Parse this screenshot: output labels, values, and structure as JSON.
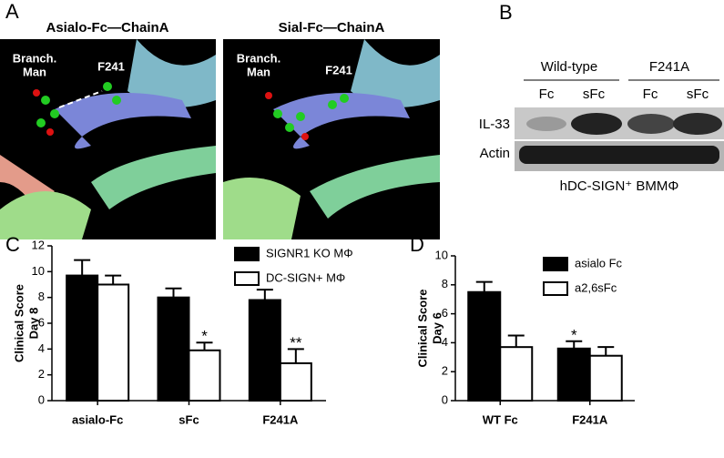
{
  "panels": {
    "A": {
      "letter": "A",
      "left_title": "Asialo-Fc—ChainA",
      "right_title": "Sial-Fc—ChainA",
      "left_labels": {
        "site": [
          "Branch.",
          "Man"
        ],
        "residue": "F241"
      },
      "right_labels": {
        "site": [
          "Branch.",
          "Man"
        ],
        "residue": "F241"
      }
    },
    "B": {
      "letter": "B",
      "groups": [
        "Wild-type",
        "F241A"
      ],
      "lanes": [
        "Fc",
        "sFc",
        "Fc",
        "sFc"
      ],
      "rows": [
        "IL-33",
        "Actin"
      ],
      "caption": "hDC-SIGN⁺ BMMΦ"
    }
  },
  "chart_data": [
    {
      "type": "bar",
      "letter": "C",
      "y_label": [
        "Clinical Score",
        "Day 8"
      ],
      "categories": [
        "asialo-Fc",
        "sFc",
        "F241A"
      ],
      "series": [
        {
          "name": "SIGNR1 KO MΦ",
          "color": "#000000",
          "values": [
            9.7,
            8.0,
            7.8
          ],
          "errors": [
            1.2,
            0.7,
            0.8
          ]
        },
        {
          "name": "DC-SIGN+ MΦ",
          "color": "#ffffff",
          "values": [
            9.0,
            3.9,
            2.9
          ],
          "errors": [
            0.7,
            0.6,
            1.1
          ],
          "value_labels": [
            null,
            "*",
            "**"
          ]
        }
      ],
      "ylim": [
        0,
        12
      ],
      "yticks": [
        0,
        2,
        4,
        6,
        8,
        10,
        12
      ],
      "legend": "upper right",
      "grid": false
    },
    {
      "type": "bar",
      "letter": "D",
      "y_label": [
        "Clinical Score",
        "Day 6"
      ],
      "categories": [
        "WT Fc",
        "F241A"
      ],
      "series": [
        {
          "name": "asialo Fc",
          "color": "#000000",
          "values": [
            7.5,
            3.6
          ],
          "errors": [
            0.7,
            0.5
          ],
          "value_labels": [
            null,
            "*"
          ]
        },
        {
          "name": "a2,6sFc",
          "color": "#ffffff",
          "values": [
            3.7,
            3.1
          ],
          "errors": [
            0.8,
            0.6
          ]
        }
      ],
      "ylim": [
        0,
        10
      ],
      "yticks": [
        0,
        2,
        4,
        6,
        8,
        10
      ],
      "legend": "upper right",
      "grid": false
    }
  ]
}
